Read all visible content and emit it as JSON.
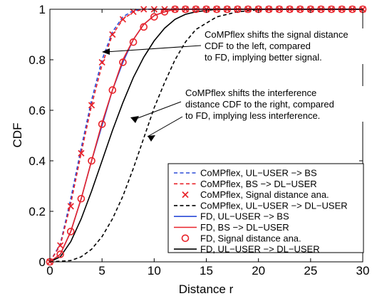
{
  "chart_data": {
    "type": "line",
    "xlabel": "Distance r",
    "ylabel": "CDF",
    "xlim": [
      0,
      30
    ],
    "ylim": [
      0,
      1
    ],
    "xticks": [
      "0",
      "5",
      "10",
      "15",
      "20",
      "25",
      "30"
    ],
    "yticks": [
      "0",
      "0.2",
      "0.4",
      "0.6",
      "0.8",
      "1"
    ],
    "grid": false,
    "legend_position": "bottom-right",
    "series": [
      {
        "name": "CoMPflex, UL−USER −> BS",
        "color": "#2a4bd7",
        "style": "dashed",
        "marker": "none",
        "x": [
          0,
          1,
          2,
          3,
          4,
          5,
          6,
          7,
          8,
          9,
          10,
          30
        ],
        "y": [
          0,
          0.07,
          0.25,
          0.45,
          0.64,
          0.8,
          0.91,
          0.97,
          0.995,
          1,
          1,
          1
        ]
      },
      {
        "name": "CoMPflex, BS −> DL−USER",
        "color": "#e8232a",
        "style": "dashed",
        "marker": "none",
        "x": [
          0,
          1,
          2,
          3,
          4,
          5,
          6,
          7,
          8,
          9,
          30
        ],
        "y": [
          0,
          0.065,
          0.23,
          0.43,
          0.62,
          0.78,
          0.9,
          0.96,
          0.99,
          1,
          1
        ]
      },
      {
        "name": "CoMPflex, Signal distance ana.",
        "color": "#e8232a",
        "style": "none",
        "marker": "x",
        "x": [
          0,
          1,
          2,
          3,
          4,
          5,
          6,
          7,
          8,
          9,
          10,
          11,
          12,
          13,
          14,
          15,
          16,
          17,
          18,
          19,
          20,
          21,
          22,
          23,
          24,
          25,
          26,
          27,
          28,
          29,
          30
        ],
        "y": [
          0,
          0.065,
          0.22,
          0.43,
          0.62,
          0.79,
          0.9,
          0.96,
          0.99,
          1,
          1,
          1,
          1,
          1,
          1,
          1,
          1,
          1,
          1,
          1,
          1,
          1,
          1,
          1,
          1,
          1,
          1,
          1,
          1,
          1,
          1
        ]
      },
      {
        "name": "CoMPflex, UL−USER −> DL−USER",
        "color": "#000000",
        "style": "dashed",
        "marker": "none",
        "x": [
          0,
          2,
          3,
          4,
          5,
          6,
          7,
          8,
          9,
          10,
          11,
          12,
          13,
          14,
          16,
          18,
          20,
          22,
          25,
          30
        ],
        "y": [
          0,
          0.005,
          0.02,
          0.05,
          0.1,
          0.17,
          0.26,
          0.37,
          0.49,
          0.61,
          0.71,
          0.8,
          0.87,
          0.92,
          0.97,
          0.99,
          0.998,
          1,
          1,
          1
        ]
      },
      {
        "name": "FD, UL−USER −> BS",
        "color": "#2a4bd7",
        "style": "solid",
        "marker": "none",
        "x": [
          0,
          1,
          2,
          3,
          4,
          5,
          6,
          7,
          8,
          9,
          10,
          11,
          12,
          13,
          30
        ],
        "y": [
          0,
          0.03,
          0.12,
          0.25,
          0.4,
          0.54,
          0.68,
          0.79,
          0.88,
          0.94,
          0.975,
          0.99,
          1,
          1,
          1
        ]
      },
      {
        "name": "FD, BS −> DL−USER",
        "color": "#e8232a",
        "style": "solid",
        "marker": "none",
        "x": [
          0,
          1,
          2,
          3,
          4,
          5,
          6,
          7,
          8,
          9,
          10,
          11,
          12,
          13,
          30
        ],
        "y": [
          0,
          0.03,
          0.12,
          0.25,
          0.4,
          0.55,
          0.68,
          0.8,
          0.88,
          0.94,
          0.975,
          0.99,
          1,
          1,
          1
        ]
      },
      {
        "name": "FD, Signal distance ana.",
        "color": "#e8232a",
        "style": "none",
        "marker": "o",
        "x": [
          0,
          1,
          2,
          3,
          4,
          5,
          6,
          7,
          8,
          9,
          10,
          11,
          12,
          13,
          14,
          15,
          16,
          17,
          18,
          19,
          20,
          21,
          22,
          23,
          24,
          25,
          26,
          27,
          28,
          29,
          30
        ],
        "y": [
          0,
          0.03,
          0.12,
          0.25,
          0.4,
          0.545,
          0.68,
          0.79,
          0.87,
          0.93,
          0.97,
          0.99,
          1,
          1,
          1,
          1,
          1,
          1,
          1,
          1,
          1,
          1,
          1,
          1,
          1,
          1,
          1,
          1,
          1,
          1,
          1
        ]
      },
      {
        "name": "FD, UL−USER −> DL−USER",
        "color": "#000000",
        "style": "solid",
        "marker": "none",
        "x": [
          0,
          1,
          2,
          3,
          4,
          5,
          6,
          7,
          8,
          9,
          10,
          11,
          12,
          13,
          14,
          15,
          16,
          18,
          20,
          25,
          30
        ],
        "y": [
          0,
          0.02,
          0.08,
          0.17,
          0.28,
          0.4,
          0.52,
          0.63,
          0.73,
          0.81,
          0.875,
          0.925,
          0.96,
          0.98,
          0.99,
          0.995,
          1,
          1,
          1,
          1,
          1
        ]
      }
    ],
    "annotations": [
      {
        "lines": [
          "CoMPflex shifts the signal distance",
          "CDF to the left, compared",
          "to FD, implying better signal."
        ]
      },
      {
        "lines": [
          "CoMPflex shifts the interference",
          "distance CDF to the right, compared",
          "to FD, implying less interference."
        ]
      }
    ]
  }
}
